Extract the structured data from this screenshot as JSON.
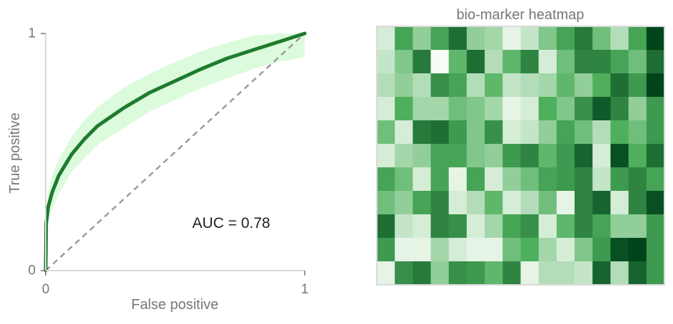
{
  "chart_data": [
    {
      "type": "line",
      "title": "",
      "xlabel": "False positive",
      "ylabel": "True positive",
      "xlim": [
        0,
        1
      ],
      "ylim": [
        0,
        1
      ],
      "xticks": [
        0,
        1
      ],
      "yticks": [
        0,
        1
      ],
      "x_tick_labels": [
        "0",
        "1"
      ],
      "y_tick_labels": [
        "0",
        "1"
      ],
      "grid": false,
      "annotation": "AUC = 0.78",
      "roc_curve": {
        "x": [
          0,
          0.002,
          0.01,
          0.025,
          0.05,
          0.1,
          0.15,
          0.2,
          0.3,
          0.4,
          0.5,
          0.6,
          0.7,
          0.8,
          0.9,
          1
        ],
        "y": [
          0,
          0.2,
          0.27,
          0.33,
          0.4,
          0.49,
          0.555,
          0.61,
          0.685,
          0.75,
          0.8,
          0.85,
          0.895,
          0.93,
          0.965,
          1
        ]
      },
      "confidence_band": {
        "x": [
          0,
          0.002,
          0.01,
          0.025,
          0.05,
          0.1,
          0.15,
          0.2,
          0.3,
          0.4,
          0.5,
          0.6,
          0.7,
          0.8,
          0.9,
          1
        ],
        "upper": [
          0,
          0.25,
          0.33,
          0.4,
          0.47,
          0.565,
          0.635,
          0.69,
          0.77,
          0.83,
          0.88,
          0.925,
          0.96,
          0.99,
          1.0,
          1.0
        ],
        "lower": [
          0,
          0.15,
          0.21,
          0.26,
          0.32,
          0.415,
          0.475,
          0.53,
          0.6,
          0.67,
          0.72,
          0.77,
          0.81,
          0.85,
          0.88,
          0.9
        ]
      },
      "reference_diagonal": {
        "x": [
          0,
          1
        ],
        "y": [
          0,
          1
        ]
      },
      "colors": {
        "curve": "#1e7b2e",
        "band": "#dcfbdc",
        "diagonal": "#9a9ca0",
        "axis": "#d9d9d9",
        "text": "#777777"
      }
    },
    {
      "type": "heatmap",
      "title": "bio-marker heatmap",
      "rows": 11,
      "cols": 16,
      "value_range": [
        0,
        1
      ],
      "values": [
        [
          0.1,
          0.55,
          0.3,
          0.55,
          0.8,
          0.3,
          0.25,
          0.05,
          0.15,
          0.35,
          0.55,
          0.75,
          0.4,
          0.2,
          0.55,
          1.0
        ],
        [
          0.15,
          0.35,
          0.75,
          0.0,
          0.45,
          0.8,
          0.2,
          0.45,
          0.7,
          0.1,
          0.4,
          0.7,
          0.7,
          0.55,
          0.4,
          0.8
        ],
        [
          0.2,
          0.3,
          0.2,
          0.65,
          0.55,
          0.2,
          0.45,
          0.15,
          0.2,
          0.25,
          0.45,
          0.3,
          0.5,
          0.8,
          0.6,
          1.0
        ],
        [
          0.1,
          0.5,
          0.25,
          0.25,
          0.4,
          0.35,
          0.25,
          0.05,
          0.1,
          0.5,
          0.35,
          0.65,
          0.9,
          0.7,
          0.3,
          0.6
        ],
        [
          0.4,
          0.1,
          0.75,
          0.8,
          0.6,
          0.35,
          0.65,
          0.1,
          0.15,
          0.3,
          0.55,
          0.4,
          0.2,
          0.5,
          0.4,
          0.6
        ],
        [
          0.1,
          0.25,
          0.3,
          0.55,
          0.55,
          0.35,
          0.3,
          0.6,
          0.7,
          0.45,
          0.6,
          0.85,
          0.1,
          0.95,
          0.5,
          0.8
        ],
        [
          0.55,
          0.4,
          0.1,
          0.55,
          0.05,
          0.55,
          0.1,
          0.3,
          0.4,
          0.55,
          0.6,
          0.7,
          0.15,
          0.6,
          0.7,
          0.55
        ],
        [
          0.4,
          0.3,
          0.55,
          0.7,
          0.1,
          0.2,
          0.45,
          0.1,
          0.2,
          0.4,
          0.05,
          0.7,
          0.85,
          0.1,
          0.7,
          0.95
        ],
        [
          0.8,
          0.15,
          0.1,
          0.7,
          0.65,
          0.1,
          0.25,
          0.55,
          0.65,
          0.1,
          0.45,
          0.7,
          0.55,
          0.3,
          0.3,
          0.6
        ],
        [
          0.6,
          0.05,
          0.05,
          0.25,
          0.1,
          0.05,
          0.05,
          0.4,
          0.5,
          0.25,
          0.1,
          0.35,
          0.6,
          0.95,
          1.0,
          0.6
        ],
        [
          0.05,
          0.65,
          0.75,
          0.3,
          0.65,
          0.6,
          0.45,
          0.7,
          0.05,
          0.2,
          0.2,
          0.15,
          0.85,
          0.2,
          0.85,
          0.6
        ]
      ],
      "colormap": {
        "low": "#f7fcf5",
        "mid": "#4eaf5c",
        "high": "#00441b"
      },
      "border_color": "#d9d9d9"
    }
  ]
}
